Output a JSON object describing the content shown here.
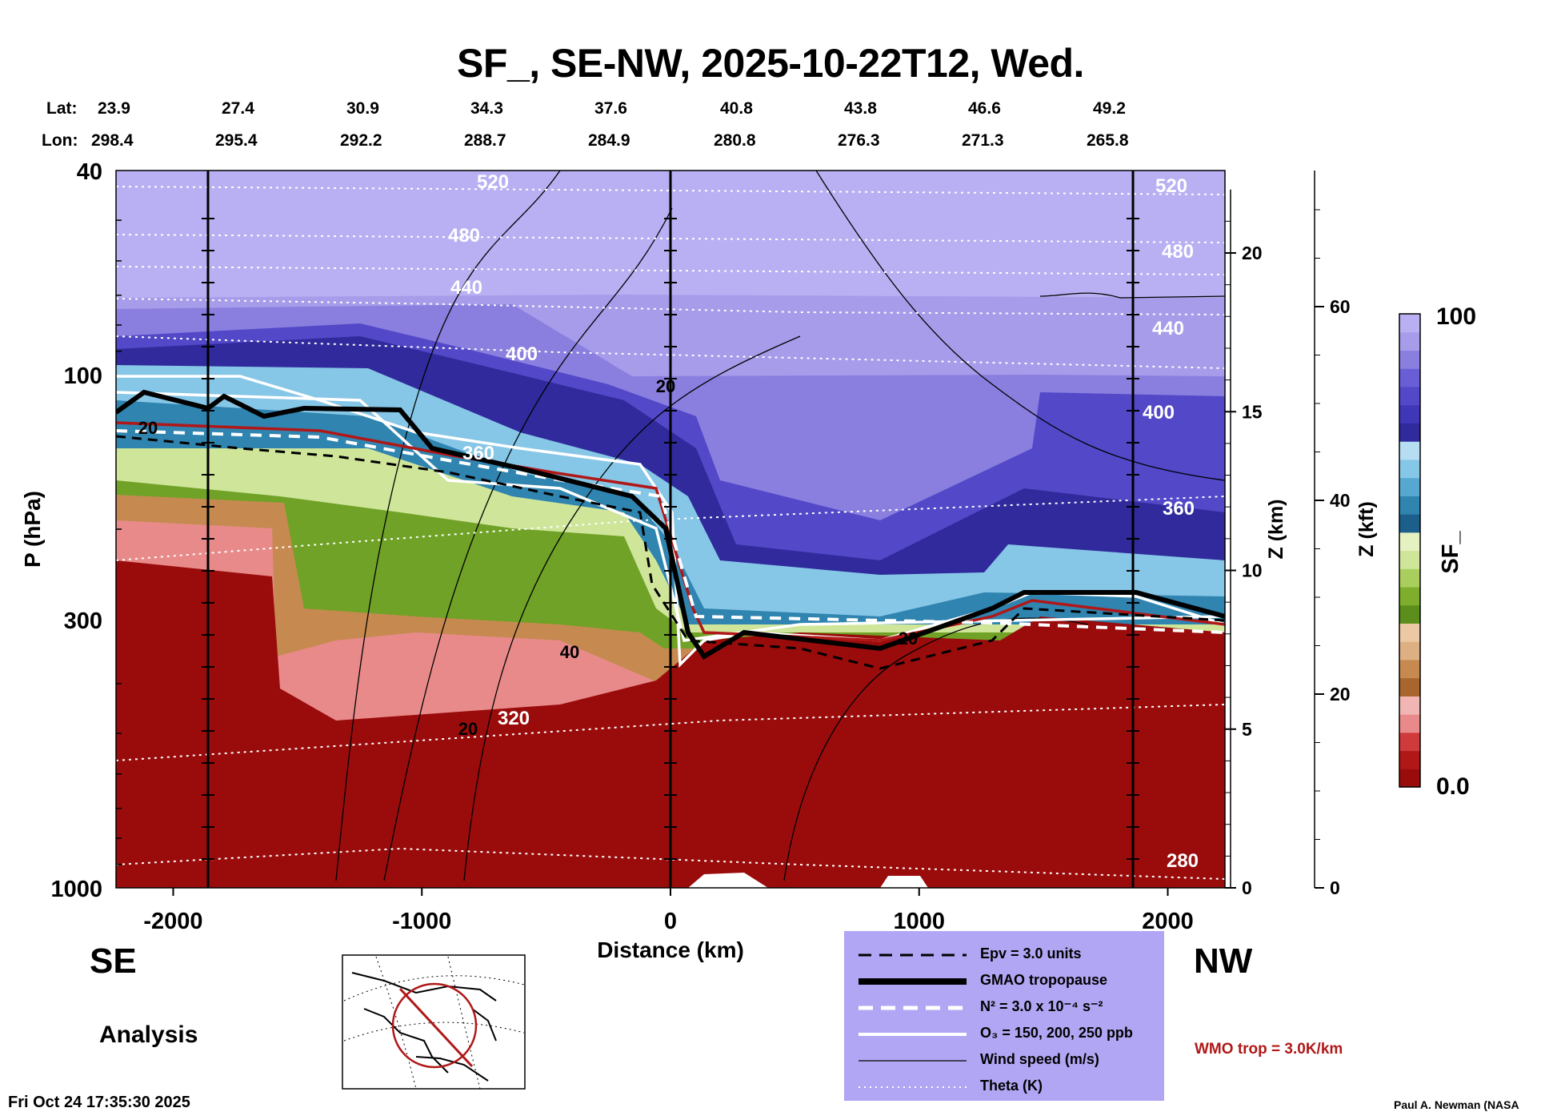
{
  "header": {
    "title": "SF_, SE-NW, 2025-10-22T12, Wed.",
    "lat_label": "Lat:",
    "lon_label": "Lon:",
    "lat": [
      "23.9",
      "27.4",
      "30.9",
      "34.3",
      "37.6",
      "40.8",
      "43.8",
      "46.6",
      "49.2"
    ],
    "lon": [
      "298.4",
      "295.4",
      "292.2",
      "288.7",
      "284.9",
      "280.8",
      "276.3",
      "271.3",
      "265.8"
    ]
  },
  "chart_data": {
    "type": "heatmap",
    "title": "SF_, SE-NW, 2025-10-22T12, Wed.",
    "xlabel": "Distance (km)",
    "ylabel": "P (hPa)",
    "xlim": [
      -2230,
      2230
    ],
    "ylim": [
      1000,
      40
    ],
    "y_scale": "log",
    "x_ticks": [
      "-2000",
      "-1000",
      "0",
      "1000",
      "2000"
    ],
    "y_ticks": [
      "40",
      "100",
      "300",
      "1000"
    ],
    "z_km_label": "Z (km)",
    "z_km_ticks": [
      "20",
      "15",
      "10",
      "5",
      "0"
    ],
    "z_kft_label": "Z (kft)",
    "z_kft_ticks": [
      "60",
      "40",
      "20",
      "0"
    ],
    "colorbar": {
      "label": "SF_",
      "max": "100",
      "min": "0.0",
      "colors": [
        "#9a0c0c",
        "#b01818",
        "#cf3a3a",
        "#e88a8a",
        "#f1b6b4",
        "#a8662e",
        "#c68a50",
        "#ddb084",
        "#ecc9a4",
        "#5c8e1c",
        "#7fae2c",
        "#a9ce5e",
        "#cfe59a",
        "#e6f1c2",
        "#1b5f8a",
        "#2f84b0",
        "#57a8d0",
        "#86c6e6",
        "#b6ddf2",
        "#302a9c",
        "#3f37b8",
        "#5248c8",
        "#6a5ed6",
        "#8a7edf",
        "#a69cea",
        "#b8b0f3"
      ]
    },
    "theta_labels": [
      "520",
      "480",
      "440",
      "400",
      "360",
      "320",
      "280",
      "520",
      "480",
      "440",
      "400",
      "360"
    ],
    "wind_labels": [
      "20",
      "20",
      "40",
      "20",
      "20"
    ],
    "annotations": [
      "SE",
      "NW",
      "Analysis"
    ],
    "timestamp": "Fri Oct 24 17:35:30 2025",
    "credit": "Paul A. Newman (NASA",
    "wmo_note": "WMO trop = 3.0K/km",
    "legend": [
      {
        "label": "Epv = 3.0 units",
        "style": "dashed-black"
      },
      {
        "label": "GMAO tropopause",
        "style": "thick-black"
      },
      {
        "label": "N² = 3.0 x 10⁻⁴ s⁻²",
        "style": "dashed-white"
      },
      {
        "label": "O₃ = 150, 200, 250 ppb",
        "style": "solid-white"
      },
      {
        "label": "Wind speed (m/s)",
        "style": "thin-black"
      },
      {
        "label": "Theta (K)",
        "style": "dotted-white"
      }
    ]
  }
}
